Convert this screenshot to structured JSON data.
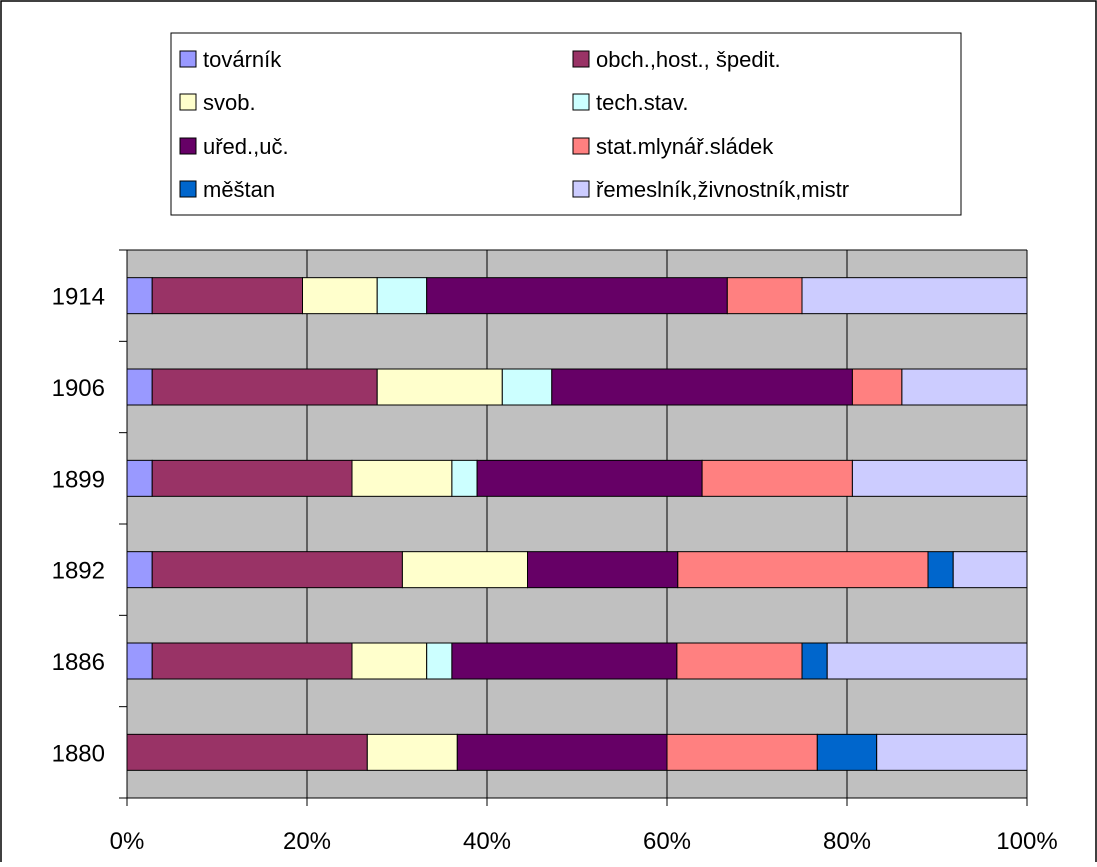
{
  "chart_data": {
    "type": "bar",
    "stacked": "percent",
    "orientation": "horizontal",
    "title": "",
    "xlabel": "",
    "ylabel": "",
    "xlim": [
      0,
      100
    ],
    "x_tick_labels": [
      "0%",
      "20%",
      "40%",
      "60%",
      "80%",
      "100%"
    ],
    "categories": [
      "1914",
      "1906",
      "1899",
      "1892",
      "1886",
      "1880"
    ],
    "grid": true,
    "legend_position": "top",
    "plot_background": "#c0c0c0",
    "series": [
      {
        "name": "továrník",
        "color": "#9999ff",
        "values": [
          2.8,
          2.8,
          2.8,
          2.8,
          2.8,
          0
        ]
      },
      {
        "name": "obch.,host., špedit.",
        "color": "#993366",
        "values": [
          16.7,
          25.0,
          22.2,
          27.8,
          22.2,
          26.7
        ]
      },
      {
        "name": "svob.",
        "color": "#ffffcc",
        "values": [
          8.3,
          13.9,
          11.1,
          13.9,
          8.3,
          10.0
        ]
      },
      {
        "name": "tech.stav.",
        "color": "#ccffff",
        "values": [
          5.5,
          5.5,
          2.8,
          0,
          2.8,
          0
        ]
      },
      {
        "name": "uřed.,uč.",
        "color": "#660066",
        "values": [
          33.4,
          33.4,
          25.0,
          16.7,
          25.0,
          23.3
        ]
      },
      {
        "name": "stat.mlynář.sládek",
        "color": "#ff8080",
        "values": [
          8.3,
          5.5,
          16.7,
          27.8,
          13.9,
          16.7
        ]
      },
      {
        "name": "měštan",
        "color": "#0066cc",
        "values": [
          0,
          0,
          0,
          2.8,
          2.8,
          6.6
        ]
      },
      {
        "name": "řemeslník,živnostník,mistr",
        "color": "#ccccff",
        "values": [
          25.0,
          13.9,
          19.4,
          8.2,
          22.2,
          16.7
        ]
      }
    ]
  }
}
